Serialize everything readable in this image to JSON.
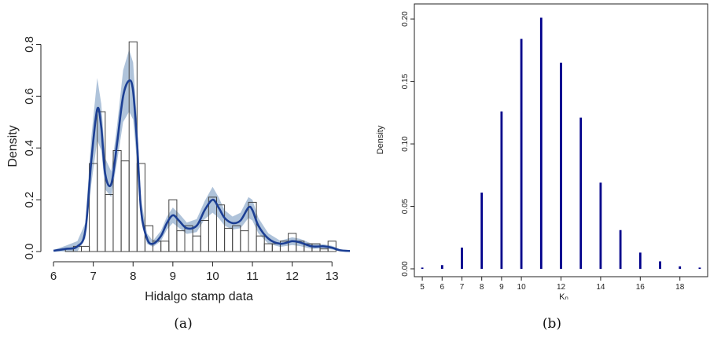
{
  "captions": {
    "left": "(a)",
    "right": "(b)"
  },
  "chart_data": [
    {
      "type": "bar",
      "subtype": "histogram-with-density",
      "xlabel": "Hidalgo stamp data",
      "ylabel": "Density",
      "xlim": [
        5.9,
        13.45
      ],
      "ylim": [
        0,
        0.85
      ],
      "x_ticks": [
        6,
        7,
        8,
        9,
        10,
        11,
        12,
        13
      ],
      "y_ticks": [
        0.0,
        0.2,
        0.4,
        0.6,
        0.8
      ],
      "bin_width": 0.2,
      "bins_start": [
        6.3,
        6.5,
        6.7,
        6.9,
        7.1,
        7.3,
        7.5,
        7.7,
        7.9,
        8.1,
        8.3,
        8.5,
        8.7,
        8.9,
        9.1,
        9.3,
        9.5,
        9.7,
        9.9,
        10.1,
        10.3,
        10.5,
        10.7,
        10.9,
        11.1,
        11.3,
        11.5,
        11.7,
        11.9,
        12.1,
        12.3,
        12.5,
        12.7,
        12.9
      ],
      "bin_density": [
        0.01,
        0.02,
        0.02,
        0.34,
        0.54,
        0.22,
        0.39,
        0.35,
        0.81,
        0.34,
        0.1,
        0.04,
        0.04,
        0.2,
        0.08,
        0.1,
        0.06,
        0.12,
        0.21,
        0.18,
        0.09,
        0.1,
        0.08,
        0.19,
        0.06,
        0.03,
        0.03,
        0.04,
        0.07,
        0.04,
        0.03,
        0.03,
        0.01,
        0.04
      ],
      "density_curve": {
        "x": [
          6.0,
          6.3,
          6.6,
          6.8,
          6.95,
          7.1,
          7.2,
          7.3,
          7.45,
          7.6,
          7.75,
          7.9,
          8.0,
          8.1,
          8.2,
          8.35,
          8.5,
          8.7,
          8.85,
          9.0,
          9.15,
          9.35,
          9.6,
          9.8,
          10.0,
          10.15,
          10.3,
          10.5,
          10.7,
          10.9,
          11.0,
          11.15,
          11.4,
          11.7,
          12.0,
          12.2,
          12.5,
          12.8,
          13.0,
          13.2,
          13.45
        ],
        "y": [
          0.003,
          0.01,
          0.02,
          0.08,
          0.35,
          0.55,
          0.48,
          0.3,
          0.26,
          0.42,
          0.6,
          0.66,
          0.62,
          0.42,
          0.16,
          0.05,
          0.03,
          0.06,
          0.11,
          0.14,
          0.12,
          0.09,
          0.1,
          0.16,
          0.2,
          0.17,
          0.13,
          0.11,
          0.12,
          0.17,
          0.16,
          0.1,
          0.05,
          0.03,
          0.04,
          0.035,
          0.02,
          0.02,
          0.015,
          0.005,
          0.002
        ]
      },
      "band_halfwidth": [
        0.003,
        0.012,
        0.02,
        0.03,
        0.09,
        0.12,
        0.09,
        0.06,
        0.05,
        0.07,
        0.1,
        0.12,
        0.11,
        0.08,
        0.04,
        0.02,
        0.012,
        0.02,
        0.025,
        0.03,
        0.028,
        0.022,
        0.025,
        0.035,
        0.05,
        0.04,
        0.03,
        0.025,
        0.03,
        0.04,
        0.04,
        0.03,
        0.02,
        0.012,
        0.015,
        0.014,
        0.01,
        0.008,
        0.007,
        0.004,
        0.002
      ],
      "colors": {
        "curve": "#1c3f94",
        "band": "#a6bcd6",
        "bars": "#444444"
      }
    },
    {
      "type": "bar",
      "subtype": "probability-mass-spikes",
      "xlabel": "Kₙ",
      "ylabel": "Density",
      "xlim": [
        4.6,
        19.4
      ],
      "ylim": [
        0,
        0.207
      ],
      "x_ticks": [
        5,
        6,
        7,
        8,
        9,
        10,
        12,
        14,
        16,
        18
      ],
      "y_ticks": [
        0.0,
        0.05,
        0.1,
        0.15,
        0.2
      ],
      "y_tick_labels": [
        "0.00",
        "0.05",
        "0.10",
        "0.15",
        "0.20"
      ],
      "x": [
        5,
        6,
        7,
        8,
        9,
        10,
        11,
        12,
        13,
        14,
        15,
        16,
        17,
        18,
        19
      ],
      "values": [
        0.001,
        0.003,
        0.017,
        0.061,
        0.126,
        0.184,
        0.201,
        0.165,
        0.121,
        0.069,
        0.031,
        0.013,
        0.006,
        0.002,
        0.001
      ],
      "colors": {
        "spike": "#00008b"
      }
    }
  ]
}
